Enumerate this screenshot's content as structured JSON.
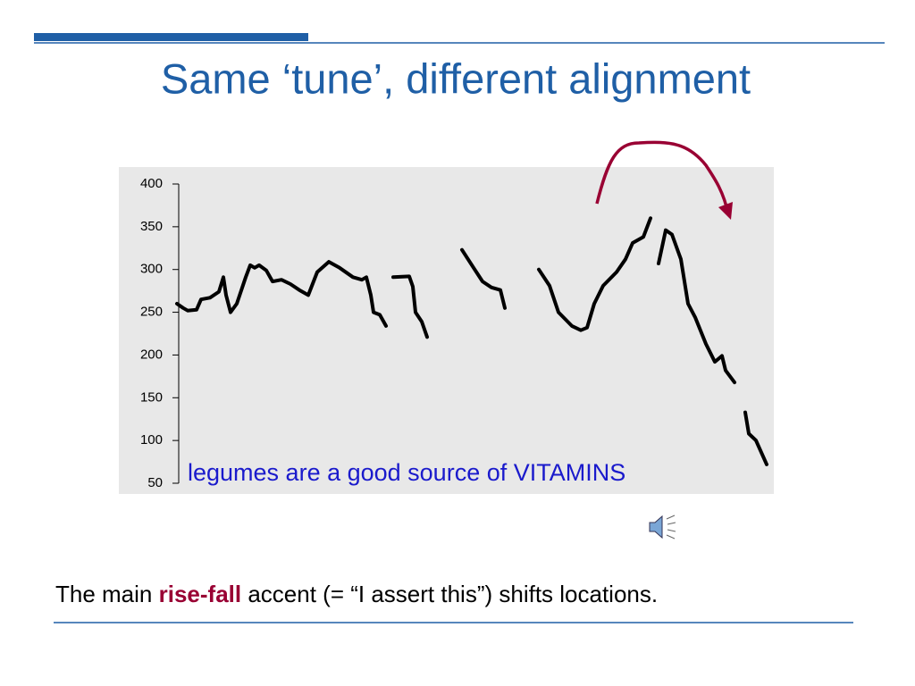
{
  "title": "Same ‘tune’, different alignment",
  "chart_data": {
    "type": "line",
    "color": "#000000",
    "annotation": "legumes are a good source of VITAMINS",
    "x": [
      2,
      9,
      14,
      24,
      29,
      39,
      49,
      54,
      57,
      62,
      69,
      79,
      84,
      89,
      94,
      102,
      109,
      119,
      129,
      139,
      149,
      159,
      172,
      184,
      199,
      209,
      214,
      219,
      222,
      229,
      236,
      null,
      244,
      262,
      266,
      269,
      276,
      282,
      null,
      321,
      334,
      344,
      354,
      364,
      369,
      null,
      407,
      419,
      429,
      444,
      454,
      461,
      469,
      479,
      494,
      504,
      512,
      524,
      532,
      null,
      541,
      549,
      556,
      566,
      574,
      582,
      594,
      604,
      612,
      616,
      626,
      null,
      638,
      642,
      650,
      662
    ],
    "values": [
      260,
      255,
      252,
      253,
      265,
      267,
      274,
      291,
      270,
      250,
      260,
      291,
      305,
      302,
      305,
      299,
      286,
      288,
      283,
      276,
      270,
      297,
      309,
      302,
      291,
      288,
      291,
      270,
      250,
      247,
      234,
      null,
      291,
      292,
      280,
      250,
      239,
      221,
      null,
      323,
      302,
      286,
      279,
      276,
      255,
      null,
      300,
      281,
      250,
      234,
      229,
      232,
      260,
      281,
      297,
      312,
      331,
      338,
      360,
      null,
      307,
      346,
      341,
      312,
      260,
      244,
      213,
      192,
      199,
      182,
      168,
      null,
      133,
      108,
      100,
      72
    ],
    "xlim": [
      0,
      670
    ],
    "ylim": [
      50,
      400
    ],
    "yticks": [
      50,
      100,
      150,
      200,
      250,
      300,
      350,
      400
    ]
  },
  "footer": [
    "The main ",
    "rise-fall",
    " accent (= “I assert this”) shifts locations."
  ]
}
